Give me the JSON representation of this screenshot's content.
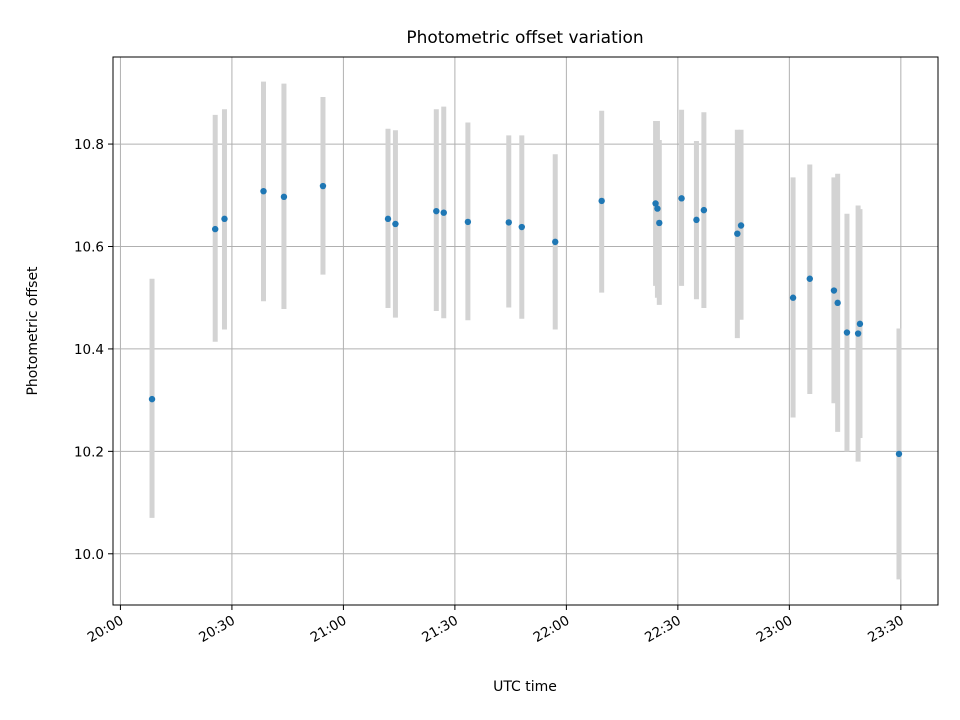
{
  "chart_data": {
    "type": "scatter",
    "title": "Photometric offset variation",
    "xlabel": "UTC time",
    "ylabel": "Photometric offset",
    "x_ticks": [
      "20:00",
      "20:30",
      "21:00",
      "21:30",
      "22:00",
      "22:30",
      "23:00",
      "23:30"
    ],
    "y_ticks": [
      "10.0",
      "10.2",
      "10.4",
      "10.6",
      "10.8"
    ],
    "xlim": [
      "19:58",
      "23:40"
    ],
    "ylim": [
      9.9,
      10.97
    ],
    "grid": true,
    "colors": {
      "point": "#1f77b4",
      "errorbar": "#d3d3d3",
      "grid": "#b0b0b0"
    },
    "points": [
      {
        "t": "20:08.5",
        "y": 10.302,
        "ylo": 10.07,
        "yhi": 10.537
      },
      {
        "t": "20:25.5",
        "y": 10.634,
        "ylo": 10.414,
        "yhi": 10.857
      },
      {
        "t": "20:28.0",
        "y": 10.654,
        "ylo": 10.438,
        "yhi": 10.868
      },
      {
        "t": "20:38.5",
        "y": 10.708,
        "ylo": 10.493,
        "yhi": 10.922
      },
      {
        "t": "20:44.0",
        "y": 10.697,
        "ylo": 10.478,
        "yhi": 10.918
      },
      {
        "t": "20:54.5",
        "y": 10.718,
        "ylo": 10.545,
        "yhi": 10.892
      },
      {
        "t": "21:12.0",
        "y": 10.654,
        "ylo": 10.48,
        "yhi": 10.83
      },
      {
        "t": "21:14.0",
        "y": 10.644,
        "ylo": 10.461,
        "yhi": 10.827
      },
      {
        "t": "21:25.0",
        "y": 10.669,
        "ylo": 10.474,
        "yhi": 10.868
      },
      {
        "t": "21:27.0",
        "y": 10.666,
        "ylo": 10.46,
        "yhi": 10.873
      },
      {
        "t": "21:33.5",
        "y": 10.648,
        "ylo": 10.456,
        "yhi": 10.842
      },
      {
        "t": "21:44.5",
        "y": 10.647,
        "ylo": 10.481,
        "yhi": 10.817
      },
      {
        "t": "21:48.0",
        "y": 10.638,
        "ylo": 10.459,
        "yhi": 10.817
      },
      {
        "t": "21:57.0",
        "y": 10.609,
        "ylo": 10.438,
        "yhi": 10.78
      },
      {
        "t": "22:09.5",
        "y": 10.689,
        "ylo": 10.51,
        "yhi": 10.865
      },
      {
        "t": "22:24.0",
        "y": 10.684,
        "ylo": 10.523,
        "yhi": 10.845
      },
      {
        "t": "22:24.5",
        "y": 10.674,
        "ylo": 10.5,
        "yhi": 10.845
      },
      {
        "t": "22:25.0",
        "y": 10.646,
        "ylo": 10.486,
        "yhi": 10.808
      },
      {
        "t": "22:31.0",
        "y": 10.694,
        "ylo": 10.523,
        "yhi": 10.867
      },
      {
        "t": "22:35.0",
        "y": 10.652,
        "ylo": 10.497,
        "yhi": 10.806
      },
      {
        "t": "22:37.0",
        "y": 10.671,
        "ylo": 10.48,
        "yhi": 10.862
      },
      {
        "t": "22:46.0",
        "y": 10.625,
        "ylo": 10.421,
        "yhi": 10.828
      },
      {
        "t": "22:47.0",
        "y": 10.641,
        "ylo": 10.457,
        "yhi": 10.828
      },
      {
        "t": "23:01.0",
        "y": 10.5,
        "ylo": 10.266,
        "yhi": 10.735
      },
      {
        "t": "23:05.5",
        "y": 10.537,
        "ylo": 10.312,
        "yhi": 10.76
      },
      {
        "t": "23:12.0",
        "y": 10.514,
        "ylo": 10.294,
        "yhi": 10.735
      },
      {
        "t": "23:13.0",
        "y": 10.49,
        "ylo": 10.238,
        "yhi": 10.742
      },
      {
        "t": "23:15.5",
        "y": 10.432,
        "ylo": 10.2,
        "yhi": 10.664
      },
      {
        "t": "23:18.5",
        "y": 10.43,
        "ylo": 10.18,
        "yhi": 10.68
      },
      {
        "t": "23:19.0",
        "y": 10.449,
        "ylo": 10.226,
        "yhi": 10.673
      },
      {
        "t": "23:29.5",
        "y": 10.195,
        "ylo": 9.95,
        "yhi": 10.44
      }
    ]
  }
}
